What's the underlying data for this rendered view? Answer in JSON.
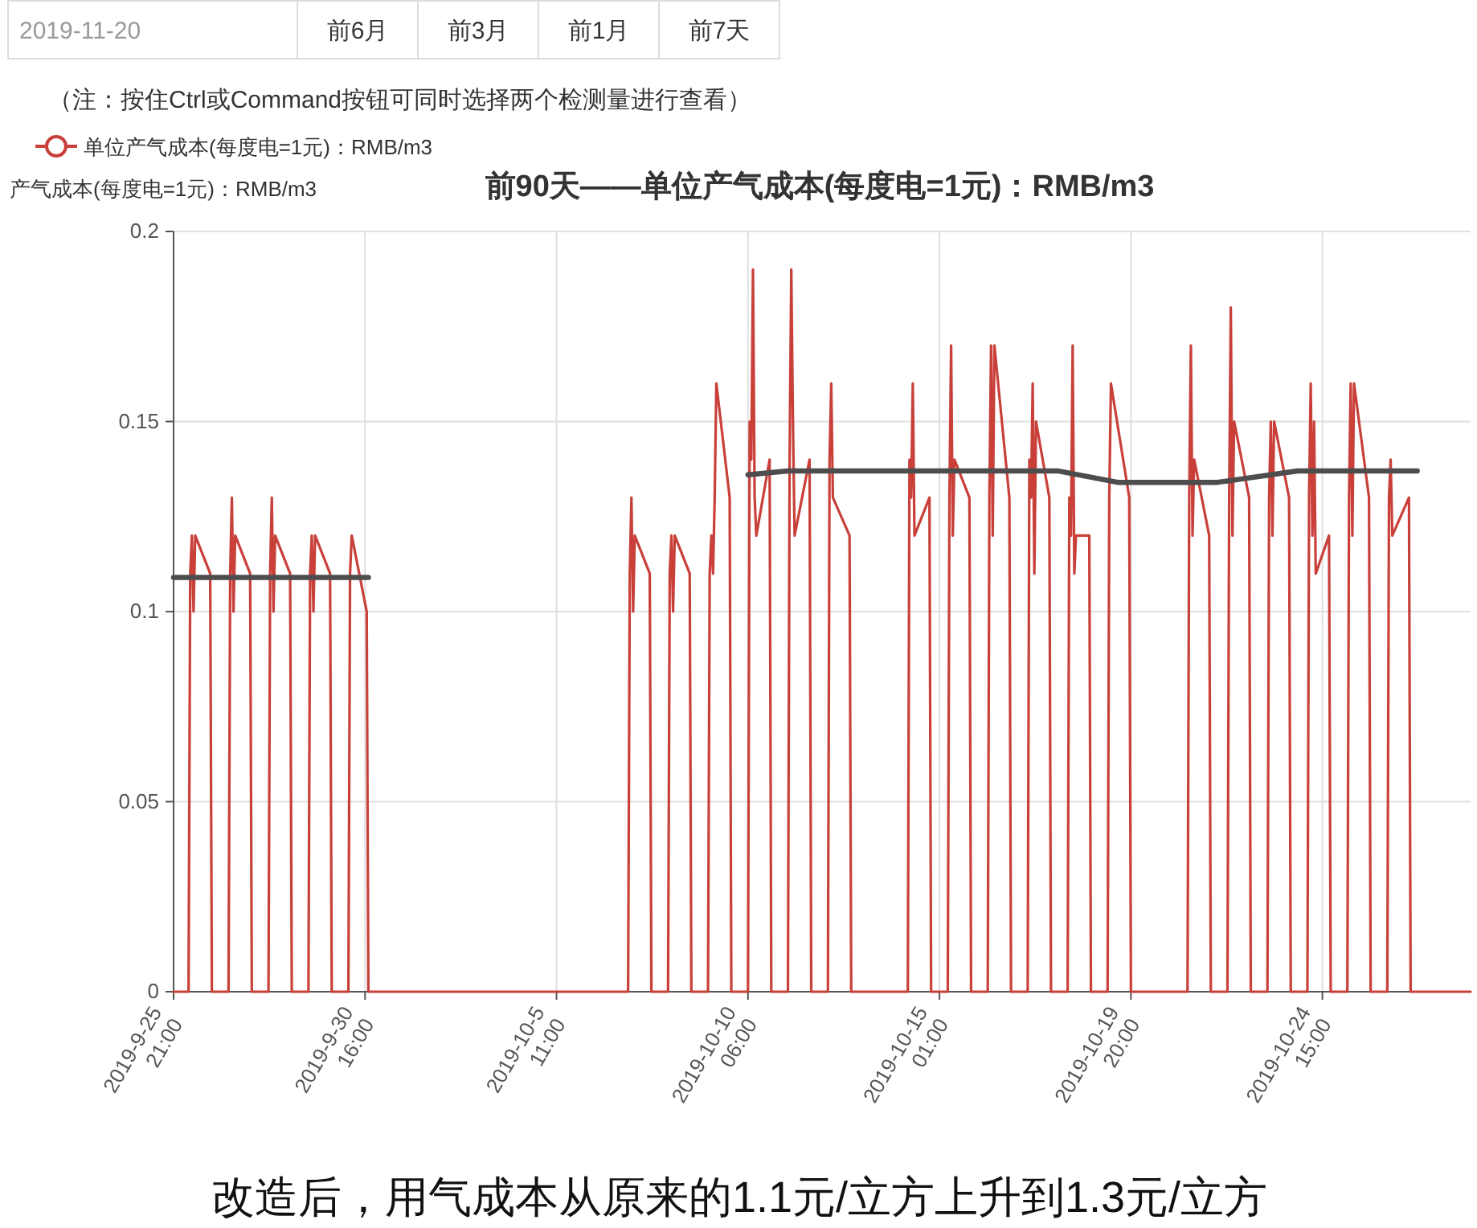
{
  "chart_data": {
    "type": "line",
    "title": "前90天——单位产气成本(每度电=1元)：RMB/m3",
    "ylabel": "产气成本(每度电=1元)：RMB/m3",
    "annotations": [
      "2019-11-20",
      "前6月",
      "前3月",
      "前1月",
      "前7天",
      "（注：按住Ctrl或Command按钮可同时选择两个检测量进行查看）",
      "改造后，用气成本从原来的1.1元/立方上升到1.3元/立方"
    ],
    "xlim": [
      "2019-09-25T21:00",
      "2019-10-28T08:00"
    ],
    "xticks": [
      {
        "value": "2019-09-25T21:00",
        "label": "2019-9-25 21:00"
      },
      {
        "value": "2019-09-30T16:00",
        "label": "2019-9-30 16:00"
      },
      {
        "value": "2019-10-05T11:00",
        "label": "2019-10-5 11:00"
      },
      {
        "value": "2019-10-10T06:00",
        "label": "2019-10-10 06:00"
      },
      {
        "value": "2019-10-15T01:00",
        "label": "2019-10-15 01:00"
      },
      {
        "value": "2019-10-19T20:00",
        "label": "2019-10-19 20:00"
      },
      {
        "value": "2019-10-24T15:00",
        "label": "2019-10-24 15:00"
      }
    ],
    "ylim": [
      0,
      0.2
    ],
    "yticks": [
      0,
      0.05,
      0.1,
      0.15,
      0.2
    ],
    "grid": true,
    "legend": "top left",
    "line_style": "solid",
    "series": [
      {
        "name": "单位产气成本(每度电=1元)：RMB/m3",
        "color": "#c9403a",
        "x": [
          "2019-09-25T21:00",
          "2019-09-26T06:00",
          "2019-09-26T07:00",
          "2019-09-26T08:00",
          "2019-09-26T09:00",
          "2019-09-26T10:00",
          "2019-09-26T19:00",
          "2019-09-26T20:00",
          "2019-09-27T06:00",
          "2019-09-27T07:00",
          "2019-09-27T08:00",
          "2019-09-27T09:00",
          "2019-09-27T10:00",
          "2019-09-27T19:00",
          "2019-09-27T20:00",
          "2019-09-28T06:00",
          "2019-09-28T07:00",
          "2019-09-28T08:00",
          "2019-09-28T09:00",
          "2019-09-28T10:00",
          "2019-09-28T19:00",
          "2019-09-28T20:00",
          "2019-09-29T06:00",
          "2019-09-29T07:00",
          "2019-09-29T08:00",
          "2019-09-29T09:00",
          "2019-09-29T10:00",
          "2019-09-29T19:00",
          "2019-09-29T20:00",
          "2019-09-30T06:00",
          "2019-09-30T07:00",
          "2019-09-30T08:00",
          "2019-09-30T17:00",
          "2019-09-30T18:00",
          "2019-10-07T06:00",
          "2019-10-07T07:00",
          "2019-10-07T08:00",
          "2019-10-07T09:00",
          "2019-10-07T10:00",
          "2019-10-07T19:00",
          "2019-10-07T20:00",
          "2019-10-08T06:00",
          "2019-10-08T07:00",
          "2019-10-08T08:00",
          "2019-10-08T09:00",
          "2019-10-08T10:00",
          "2019-10-08T19:00",
          "2019-10-08T20:00",
          "2019-10-09T06:00",
          "2019-10-09T07:00",
          "2019-10-09T08:00",
          "2019-10-09T09:00",
          "2019-10-09T10:00",
          "2019-10-09T11:00",
          "2019-10-09T19:00",
          "2019-10-09T20:00",
          "2019-10-10T06:00",
          "2019-10-10T07:00",
          "2019-10-10T08:00",
          "2019-10-10T09:00",
          "2019-10-10T10:00",
          "2019-10-10T11:00",
          "2019-10-10T19:00",
          "2019-10-10T20:00",
          "2019-10-11T06:00",
          "2019-10-11T07:00",
          "2019-10-11T08:00",
          "2019-10-11T09:00",
          "2019-10-11T10:00",
          "2019-10-11T19:00",
          "2019-10-11T20:00",
          "2019-10-12T06:00",
          "2019-10-12T07:00",
          "2019-10-12T08:00",
          "2019-10-12T09:00",
          "2019-10-12T19:00",
          "2019-10-12T20:00",
          "2019-10-14T06:00",
          "2019-10-14T07:00",
          "2019-10-14T08:00",
          "2019-10-14T09:00",
          "2019-10-14T10:00",
          "2019-10-14T19:00",
          "2019-10-14T20:00",
          "2019-10-15T06:00",
          "2019-10-15T07:00",
          "2019-10-15T08:00",
          "2019-10-15T09:00",
          "2019-10-15T10:00",
          "2019-10-15T19:00",
          "2019-10-15T20:00",
          "2019-10-16T06:00",
          "2019-10-16T07:00",
          "2019-10-16T08:00",
          "2019-10-16T09:00",
          "2019-10-16T10:00",
          "2019-10-16T19:00",
          "2019-10-16T20:00",
          "2019-10-17T06:00",
          "2019-10-17T07:00",
          "2019-10-17T08:00",
          "2019-10-17T09:00",
          "2019-10-17T10:00",
          "2019-10-17T11:00",
          "2019-10-17T19:00",
          "2019-10-17T20:00",
          "2019-10-18T06:00",
          "2019-10-18T07:00",
          "2019-10-18T08:00",
          "2019-10-18T09:00",
          "2019-10-18T10:00",
          "2019-10-18T11:00",
          "2019-10-18T19:00",
          "2019-10-18T20:00",
          "2019-10-19T06:00",
          "2019-10-19T07:00",
          "2019-10-19T08:00",
          "2019-10-19T19:00",
          "2019-10-19T20:00",
          "2019-10-21T06:00",
          "2019-10-21T07:00",
          "2019-10-21T08:00",
          "2019-10-21T09:00",
          "2019-10-21T10:00",
          "2019-10-21T19:00",
          "2019-10-21T20:00",
          "2019-10-22T06:00",
          "2019-10-22T07:00",
          "2019-10-22T08:00",
          "2019-10-22T09:00",
          "2019-10-22T10:00",
          "2019-10-22T19:00",
          "2019-10-22T20:00",
          "2019-10-23T06:00",
          "2019-10-23T07:00",
          "2019-10-23T08:00",
          "2019-10-23T09:00",
          "2019-10-23T10:00",
          "2019-10-23T19:00",
          "2019-10-23T20:00",
          "2019-10-24T06:00",
          "2019-10-24T07:00",
          "2019-10-24T08:00",
          "2019-10-24T09:00",
          "2019-10-24T10:00",
          "2019-10-24T11:00",
          "2019-10-24T19:00",
          "2019-10-24T20:00",
          "2019-10-25T06:00",
          "2019-10-25T07:00",
          "2019-10-25T08:00",
          "2019-10-25T09:00",
          "2019-10-25T10:00",
          "2019-10-25T19:00",
          "2019-10-25T20:00",
          "2019-10-26T06:00",
          "2019-10-26T07:00",
          "2019-10-26T08:00",
          "2019-10-26T09:00",
          "2019-10-26T19:00",
          "2019-10-26T20:00",
          "2019-10-28T08:00"
        ],
        "values": [
          0,
          0,
          0.11,
          0.12,
          0.1,
          0.12,
          0.11,
          0,
          0,
          0.11,
          0.13,
          0.1,
          0.12,
          0.11,
          0,
          0,
          0.11,
          0.13,
          0.1,
          0.12,
          0.11,
          0,
          0,
          0.11,
          0.12,
          0.1,
          0.12,
          0.11,
          0,
          0,
          0.11,
          0.12,
          0.1,
          0,
          0,
          0.11,
          0.13,
          0.1,
          0.12,
          0.11,
          0,
          0,
          0.11,
          0.12,
          0.1,
          0.12,
          0.11,
          0,
          0,
          0.11,
          0.12,
          0.11,
          0.13,
          0.16,
          0.13,
          0,
          0,
          0.15,
          0.14,
          0.19,
          0.13,
          0.12,
          0.14,
          0,
          0,
          0.14,
          0.19,
          0.15,
          0.12,
          0.14,
          0,
          0,
          0.14,
          0.16,
          0.13,
          0.12,
          0,
          0,
          0.14,
          0.13,
          0.16,
          0.12,
          0.13,
          0,
          0,
          0.13,
          0.17,
          0.12,
          0.14,
          0.13,
          0,
          0,
          0.13,
          0.17,
          0.12,
          0.17,
          0.13,
          0,
          0,
          0.14,
          0.13,
          0.16,
          0.11,
          0.15,
          0.13,
          0,
          0,
          0.13,
          0.12,
          0.17,
          0.11,
          0.12,
          0.12,
          0,
          0,
          0.13,
          0.16,
          0.13,
          0,
          0,
          0.13,
          0.17,
          0.12,
          0.14,
          0.12,
          0,
          0,
          0.13,
          0.18,
          0.12,
          0.15,
          0.13,
          0,
          0,
          0.13,
          0.15,
          0.12,
          0.15,
          0.13,
          0,
          0,
          0.13,
          0.16,
          0.12,
          0.15,
          0.11,
          0.12,
          0,
          0,
          0.13,
          0.16,
          0.12,
          0.16,
          0.13,
          0,
          0,
          0.13,
          0.14,
          0.12,
          0.13,
          0,
          0
        ]
      },
      {
        "color": "#4d4d4d",
        "x": [
          "2019-09-25T21:00",
          "2019-09-30T18:00"
        ],
        "values": [
          0.109,
          0.109
        ]
      },
      {
        "color": "#4d4d4d",
        "x": [
          "2019-10-10T06:00",
          "2019-10-11T06:00",
          "2019-10-18T00:00",
          "2019-10-19T12:00",
          "2019-10-22T00:00",
          "2019-10-24T00:00",
          "2019-10-27T00:00"
        ],
        "values": [
          0.136,
          0.137,
          0.137,
          0.134,
          0.134,
          0.137,
          0.137
        ]
      }
    ]
  }
}
